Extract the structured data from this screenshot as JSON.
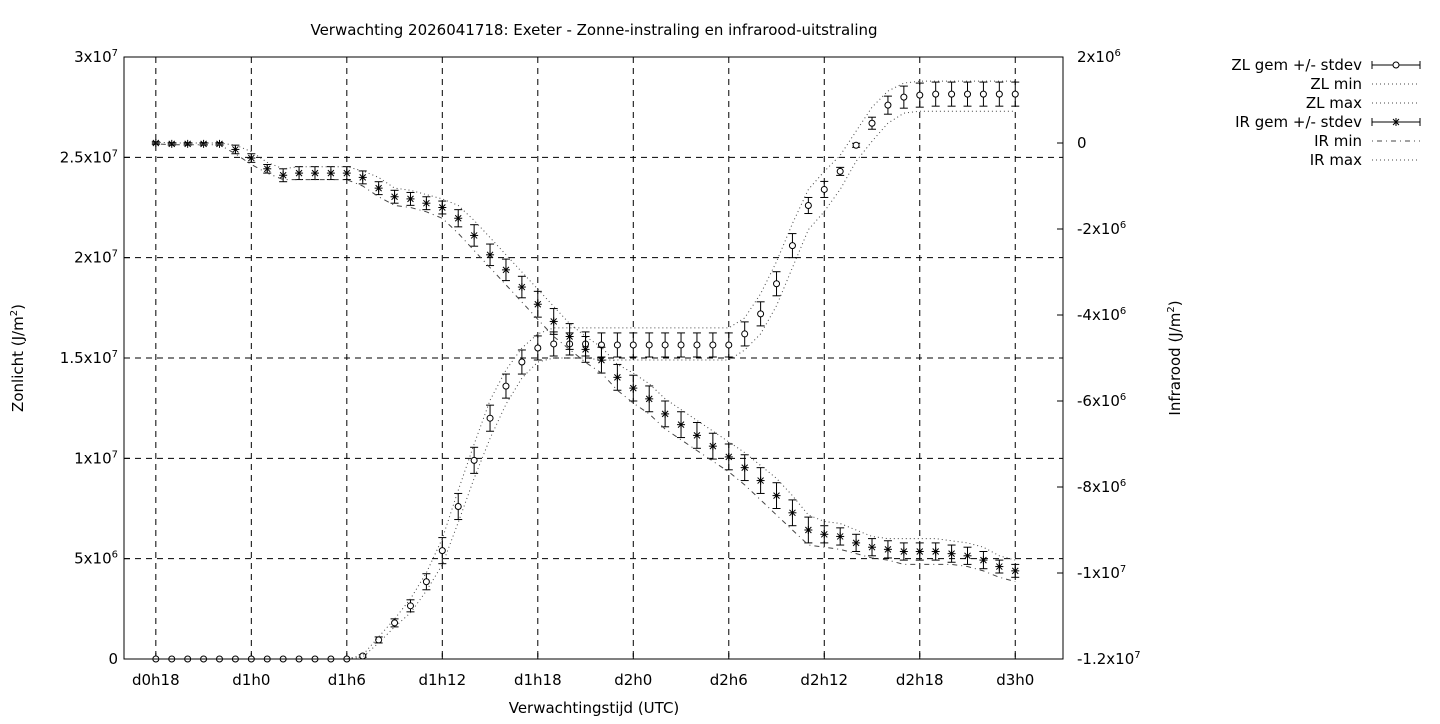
{
  "chart_data": {
    "type": "line",
    "title": "Verwachting 2026041718: Exeter - Zonne-instraling en infrarood-uitstraling",
    "xlabel": "Verwachtingstijd (UTC)",
    "ylabel_left": {
      "main": "Zonlicht (J/m",
      "sup": "2",
      "end": ")"
    },
    "ylabel_right": {
      "main": "Infrarood (J/m",
      "sup": "2",
      "end": ")"
    },
    "x_unit": "hours from d0h18",
    "xlim": [
      -2,
      57
    ],
    "ylim_left": [
      0,
      30000000
    ],
    "ylim_right": [
      -12000000,
      2000000
    ],
    "grid": true,
    "legend_position": "outside-right",
    "x_ticks": [
      {
        "v": 0,
        "label": "d0h18"
      },
      {
        "v": 6,
        "label": "d1h0"
      },
      {
        "v": 12,
        "label": "d1h6"
      },
      {
        "v": 18,
        "label": "d1h12"
      },
      {
        "v": 24,
        "label": "d1h18"
      },
      {
        "v": 30,
        "label": "d2h0"
      },
      {
        "v": 36,
        "label": "d2h6"
      },
      {
        "v": 42,
        "label": "d2h12"
      },
      {
        "v": 48,
        "label": "d2h18"
      },
      {
        "v": 54,
        "label": "d3h0"
      }
    ],
    "y_ticks_left": [
      {
        "v": 0,
        "base": "0",
        "exp": ""
      },
      {
        "v": 5000000,
        "base": "5x10",
        "exp": "6"
      },
      {
        "v": 10000000,
        "base": "1x10",
        "exp": "7"
      },
      {
        "v": 15000000,
        "base": "1.5x10",
        "exp": "7"
      },
      {
        "v": 20000000,
        "base": "2x10",
        "exp": "7"
      },
      {
        "v": 25000000,
        "base": "2.5x10",
        "exp": "7"
      },
      {
        "v": 30000000,
        "base": "3x10",
        "exp": "7"
      }
    ],
    "y_ticks_right": [
      {
        "v": -12000000,
        "base": "-1.2x10",
        "exp": "7"
      },
      {
        "v": -10000000,
        "base": "-1x10",
        "exp": "7"
      },
      {
        "v": -8000000,
        "base": "-8x10",
        "exp": "6"
      },
      {
        "v": -6000000,
        "base": "-6x10",
        "exp": "6"
      },
      {
        "v": -4000000,
        "base": "-4x10",
        "exp": "6"
      },
      {
        "v": -2000000,
        "base": "-2x10",
        "exp": "6"
      },
      {
        "v": 0,
        "base": "0",
        "exp": ""
      },
      {
        "v": 2000000,
        "base": "2x10",
        "exp": "6"
      }
    ],
    "legend": [
      {
        "label": "ZL gem +/- stdev",
        "kind": "errorbar-circle"
      },
      {
        "label": "ZL min",
        "kind": "dotted"
      },
      {
        "label": "ZL max",
        "kind": "dotted"
      },
      {
        "label": "IR gem +/- stdev",
        "kind": "errorbar-star"
      },
      {
        "label": "IR min",
        "kind": "dashdot"
      },
      {
        "label": "IR max",
        "kind": "dotted"
      }
    ],
    "x": [
      0,
      1,
      2,
      3,
      4,
      5,
      6,
      7,
      8,
      9,
      10,
      11,
      12,
      13,
      14,
      15,
      16,
      17,
      18,
      19,
      20,
      21,
      22,
      23,
      24,
      25,
      26,
      27,
      28,
      29,
      30,
      31,
      32,
      33,
      34,
      35,
      36,
      37,
      38,
      39,
      40,
      41,
      42,
      43,
      44,
      45,
      46,
      47,
      48,
      49,
      50,
      51,
      52,
      53,
      54
    ],
    "series": [
      {
        "name": "ZL gem +/- stdev",
        "axis": "left",
        "marker": "circle",
        "values": [
          0,
          0,
          0,
          0,
          0,
          0,
          0,
          0,
          0,
          0,
          0,
          0,
          0,
          150000,
          950000,
          1800000,
          2650000,
          3850000,
          5400000,
          7600000,
          9900000,
          12000000,
          13600000,
          14800000,
          15500000,
          15700000,
          15700000,
          15700000,
          15650000,
          15650000,
          15650000,
          15650000,
          15650000,
          15650000,
          15650000,
          15650000,
          15650000,
          16200000,
          17200000,
          18700000,
          20600000,
          22600000,
          23400000,
          24300000,
          25600000,
          26700000,
          27600000,
          28000000,
          28100000,
          28150000,
          28150000,
          28150000,
          28150000,
          28150000,
          28150000
        ],
        "stdev": [
          0,
          0,
          0,
          0,
          0,
          0,
          0,
          0,
          0,
          0,
          0,
          0,
          0,
          60000,
          150000,
          200000,
          300000,
          400000,
          650000,
          650000,
          650000,
          650000,
          600000,
          600000,
          600000,
          600000,
          550000,
          600000,
          600000,
          600000,
          600000,
          600000,
          600000,
          600000,
          600000,
          600000,
          600000,
          600000,
          600000,
          600000,
          600000,
          400000,
          400000,
          200000,
          100000,
          300000,
          450000,
          550000,
          600000,
          600000,
          600000,
          600000,
          600000,
          600000,
          600000
        ]
      },
      {
        "name": "ZL min",
        "axis": "left",
        "style": "dotted",
        "values": [
          0,
          0,
          0,
          0,
          0,
          0,
          0,
          0,
          0,
          0,
          0,
          0,
          0,
          100000,
          800000,
          1600000,
          2300000,
          3400000,
          4700000,
          6800000,
          9000000,
          11000000,
          12700000,
          14000000,
          14800000,
          15000000,
          15000000,
          15000000,
          14900000,
          14900000,
          14900000,
          14900000,
          14900000,
          14900000,
          14900000,
          14900000,
          14900000,
          15400000,
          16200000,
          17600000,
          19500000,
          21400000,
          22300000,
          23400000,
          24800000,
          25800000,
          26700000,
          27200000,
          27300000,
          27300000,
          27300000,
          27300000,
          27300000,
          27300000,
          27300000
        ]
      },
      {
        "name": "ZL max",
        "axis": "left",
        "style": "dotted",
        "values": [
          0,
          0,
          0,
          0,
          0,
          0,
          0,
          0,
          0,
          0,
          0,
          0,
          0,
          200000,
          1100000,
          2000000,
          3000000,
          4300000,
          6000000,
          8400000,
          10700000,
          12900000,
          14400000,
          15500000,
          16200000,
          16500000,
          16500000,
          16500000,
          16500000,
          16500000,
          16500000,
          16500000,
          16500000,
          16500000,
          16500000,
          16500000,
          16500000,
          17000000,
          18200000,
          19800000,
          21700000,
          23400000,
          24300000,
          25100000,
          26300000,
          27500000,
          28300000,
          28700000,
          28800000,
          28800000,
          28800000,
          28800000,
          28800000,
          28800000,
          28800000
        ]
      },
      {
        "name": "IR gem +/- stdev",
        "axis": "right",
        "marker": "star",
        "values": [
          0,
          -20000,
          -20000,
          -20000,
          -20000,
          -150000,
          -350000,
          -600000,
          -750000,
          -700000,
          -700000,
          -700000,
          -700000,
          -800000,
          -1050000,
          -1250000,
          -1300000,
          -1400000,
          -1500000,
          -1750000,
          -2150000,
          -2600000,
          -2950000,
          -3350000,
          -3750000,
          -4150000,
          -4500000,
          -4800000,
          -5050000,
          -5450000,
          -5700000,
          -5950000,
          -6300000,
          -6550000,
          -6800000,
          -7050000,
          -7300000,
          -7550000,
          -7850000,
          -8200000,
          -8600000,
          -9000000,
          -9100000,
          -9150000,
          -9300000,
          -9400000,
          -9450000,
          -9500000,
          -9500000,
          -9500000,
          -9550000,
          -9600000,
          -9700000,
          -9850000,
          -9950000
        ],
        "stdev": [
          30000,
          30000,
          30000,
          30000,
          30000,
          100000,
          100000,
          100000,
          150000,
          150000,
          150000,
          150000,
          150000,
          150000,
          150000,
          150000,
          150000,
          150000,
          150000,
          200000,
          250000,
          250000,
          250000,
          250000,
          300000,
          300000,
          300000,
          300000,
          300000,
          300000,
          300000,
          300000,
          300000,
          300000,
          300000,
          300000,
          300000,
          300000,
          300000,
          300000,
          300000,
          300000,
          200000,
          200000,
          200000,
          200000,
          200000,
          200000,
          200000,
          200000,
          200000,
          200000,
          200000,
          150000,
          150000
        ]
      },
      {
        "name": "IR min",
        "axis": "right",
        "style": "dashdot",
        "values": [
          -20000,
          -40000,
          -40000,
          -40000,
          -40000,
          -250000,
          -500000,
          -700000,
          -850000,
          -850000,
          -850000,
          -850000,
          -850000,
          -1000000,
          -1250000,
          -1450000,
          -1500000,
          -1600000,
          -1750000,
          -2100000,
          -2500000,
          -2900000,
          -3300000,
          -3700000,
          -4100000,
          -4500000,
          -4800000,
          -5100000,
          -5350000,
          -5750000,
          -6050000,
          -6300000,
          -6650000,
          -6900000,
          -7150000,
          -7400000,
          -7650000,
          -7950000,
          -8300000,
          -8650000,
          -9000000,
          -9350000,
          -9400000,
          -9450000,
          -9550000,
          -9650000,
          -9700000,
          -9800000,
          -9800000,
          -9800000,
          -9800000,
          -9850000,
          -9950000,
          -10100000,
          -10200000
        ]
      },
      {
        "name": "IR max",
        "axis": "right",
        "style": "dotted",
        "values": [
          20000,
          0,
          0,
          0,
          0,
          -50000,
          -200000,
          -450000,
          -600000,
          -550000,
          -550000,
          -550000,
          -550000,
          -650000,
          -800000,
          -1050000,
          -1100000,
          -1200000,
          -1300000,
          -1450000,
          -1800000,
          -2200000,
          -2600000,
          -3000000,
          -3400000,
          -3800000,
          -4200000,
          -4500000,
          -4750000,
          -5150000,
          -5350000,
          -5600000,
          -5950000,
          -6200000,
          -6450000,
          -6700000,
          -6950000,
          -7200000,
          -7500000,
          -7800000,
          -8200000,
          -8650000,
          -8800000,
          -8850000,
          -9000000,
          -9150000,
          -9200000,
          -9200000,
          -9200000,
          -9200000,
          -9250000,
          -9300000,
          -9400000,
          -9600000,
          -9700000
        ]
      }
    ]
  }
}
